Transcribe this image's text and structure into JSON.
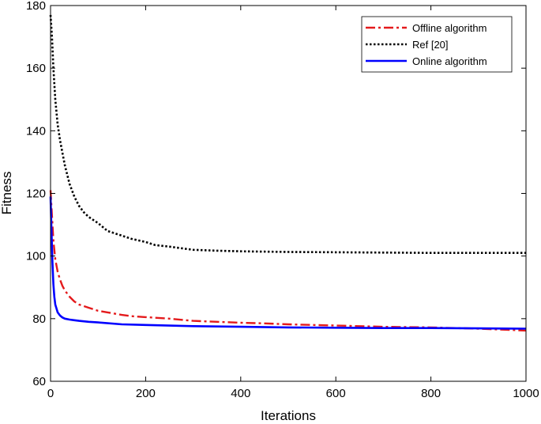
{
  "chart_data": {
    "type": "line",
    "title": "",
    "xlabel": "Iterations",
    "ylabel": "Fitness",
    "xlim": [
      0,
      1000
    ],
    "ylim": [
      60,
      180
    ],
    "xticks": [
      0,
      200,
      400,
      600,
      800,
      1000
    ],
    "yticks": [
      60,
      80,
      100,
      120,
      140,
      160,
      180
    ],
    "grid": false,
    "legend_position": "top-right",
    "series": [
      {
        "name": "Offline algorithm",
        "color": "#e41a1c",
        "style": "dashdot",
        "x": [
          0,
          3,
          6,
          10,
          15,
          20,
          25,
          30,
          40,
          50,
          60,
          70,
          80,
          100,
          120,
          150,
          170,
          200,
          250,
          300,
          350,
          400,
          450,
          500,
          550,
          600,
          650,
          700,
          750,
          800,
          850,
          900,
          950,
          1000
        ],
        "y": [
          121,
          113,
          105,
          99,
          95,
          92.5,
          90.5,
          89,
          87,
          85.5,
          84.5,
          84,
          83.5,
          82.5,
          82,
          81.2,
          80.8,
          80.5,
          80,
          79.3,
          79,
          78.7,
          78.5,
          78.2,
          78,
          77.8,
          77.6,
          77.4,
          77.3,
          77.2,
          77,
          76.8,
          76.5,
          76.2
        ]
      },
      {
        "name": "Ref [20]",
        "color": "#000000",
        "style": "dotted",
        "x": [
          0,
          3,
          6,
          10,
          15,
          20,
          25,
          30,
          40,
          50,
          60,
          70,
          80,
          100,
          120,
          150,
          170,
          200,
          220,
          250,
          300,
          350,
          400,
          450,
          500,
          600,
          700,
          800,
          900,
          1000
        ],
        "y": [
          177,
          170,
          160,
          150,
          142,
          137,
          133,
          129,
          123,
          119,
          116,
          114,
          112.5,
          110.5,
          108,
          106.5,
          105.5,
          104.5,
          103.5,
          103,
          102,
          101.7,
          101.5,
          101.4,
          101.3,
          101.2,
          101.1,
          101,
          101,
          101
        ]
      },
      {
        "name": "Online algorithm",
        "color": "#0000ff",
        "style": "solid",
        "x": [
          0,
          2,
          4,
          6,
          8,
          10,
          15,
          20,
          25,
          30,
          40,
          50,
          60,
          80,
          100,
          150,
          200,
          300,
          400,
          500,
          600,
          700,
          800,
          900,
          1000
        ],
        "y": [
          119,
          108,
          98,
          91,
          87,
          84.5,
          82,
          81,
          80.4,
          80,
          79.7,
          79.5,
          79.3,
          79,
          78.8,
          78.2,
          78,
          77.6,
          77.4,
          77.2,
          77.1,
          77,
          77,
          76.9,
          76.8
        ]
      }
    ]
  }
}
